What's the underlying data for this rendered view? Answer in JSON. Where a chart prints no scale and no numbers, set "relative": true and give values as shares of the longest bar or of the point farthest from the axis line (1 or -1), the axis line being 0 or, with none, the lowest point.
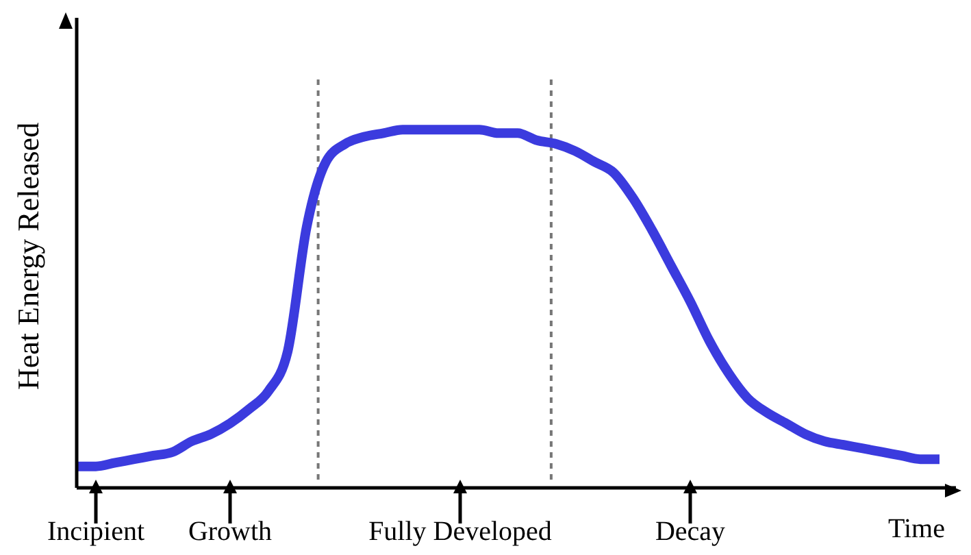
{
  "chart_data": {
    "type": "line",
    "relative": true,
    "xlabel": "Time",
    "ylabel": "Heat Energy Released",
    "categories": [
      null,
      "Incipient",
      null,
      null,
      null,
      null,
      null,
      null,
      "Growth",
      null,
      null,
      null,
      null,
      null,
      null,
      null,
      null,
      null,
      null,
      null,
      "Fully Developed",
      null,
      null,
      null,
      null,
      null,
      null,
      null,
      null,
      null,
      null,
      null,
      "Decay",
      null,
      null,
      null,
      null,
      null,
      null,
      null,
      null,
      null,
      null,
      null,
      null,
      null
    ],
    "series": [
      {
        "color": "#3b3bde",
        "values": [
          0.06,
          0.06,
          0.07,
          0.08,
          0.09,
          0.1,
          0.13,
          0.15,
          0.18,
          0.22,
          0.27,
          0.38,
          0.73,
          0.91,
          0.96,
          0.98,
          0.99,
          1.0,
          1.0,
          1.0,
          1.0,
          1.0,
          0.99,
          0.99,
          0.97,
          0.96,
          0.94,
          0.91,
          0.88,
          0.81,
          0.72,
          0.62,
          0.52,
          0.41,
          0.32,
          0.25,
          0.21,
          0.18,
          0.15,
          0.13,
          0.12,
          0.11,
          0.1,
          0.09,
          0.08,
          0.08
        ]
      }
    ],
    "marker": "none",
    "line_style": "solid"
  }
}
